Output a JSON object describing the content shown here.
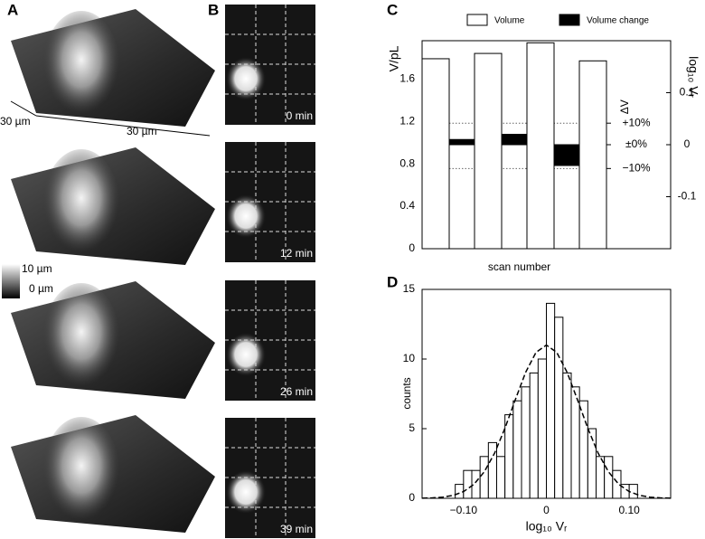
{
  "figure": {
    "panel_labels": [
      "A",
      "B",
      "C",
      "D"
    ],
    "panel_a": {
      "scale_x": "30 µm",
      "scale_y": "30 µm",
      "colorbar_max": "10 µm",
      "colorbar_min": "0 µm"
    },
    "panel_b": {
      "times": [
        "0 min",
        "12 min",
        "26 min",
        "39 min"
      ]
    }
  },
  "chart_data": [
    {
      "type": "bar",
      "categories": [
        null,
        null,
        null,
        null
      ],
      "xlabel": "scan number",
      "ylabel": "V/pL",
      "y2label": "log₁₀ Vᵣ",
      "ylim": [
        0,
        1.96
      ],
      "yticks": [
        0,
        0.4,
        0.8,
        1.2,
        1.6
      ],
      "y2lim": [
        -0.2,
        0.2
      ],
      "y2ticks": [
        -0.1,
        0,
        0.1
      ],
      "legend": "top",
      "series": [
        {
          "name": "Volume",
          "color": "#ffffff",
          "values": [
            1.79,
            1.84,
            1.94,
            1.77
          ]
        },
        {
          "name": "Volume change",
          "color": "#000000",
          "axis": "y2",
          "values": [
            null,
            0.01,
            0.02,
            -0.04
          ]
        }
      ],
      "dv_label": "ΔV",
      "dv_ticks": [
        {
          "value": 0.0414,
          "label": "+10%"
        },
        {
          "value": 0,
          "label": "±0%"
        },
        {
          "value": -0.0458,
          "label": "−10%"
        }
      ]
    },
    {
      "type": "histogram",
      "xlabel": "log₁₀ Vᵣ",
      "ylabel": "counts",
      "color": "#ffffff",
      "bins": [
        -0.11,
        -0.1,
        -0.09,
        -0.08,
        -0.07,
        -0.06,
        -0.05,
        -0.04,
        -0.03,
        -0.02,
        -0.01,
        0,
        0.01,
        0.02,
        0.03,
        0.04,
        0.05,
        0.06,
        0.07,
        0.08,
        0.09,
        0.1,
        0.11
      ],
      "values": [
        1,
        2,
        2,
        3,
        4,
        3,
        6,
        7,
        8,
        9,
        10,
        14,
        13,
        9,
        8,
        7,
        5,
        3,
        3,
        2,
        1,
        1
      ],
      "xlim": [
        -0.15,
        0.15
      ],
      "xticks": [
        {
          "value": -0.1,
          "label": "−0.10"
        },
        0,
        {
          "value": 0.1,
          "label": "0.10"
        }
      ],
      "ylim": [
        0,
        15
      ],
      "yticks": [
        0,
        5,
        10,
        15
      ],
      "fit_curve": {
        "x": [
          -0.15,
          -0.1375,
          -0.125,
          -0.1125,
          -0.1,
          -0.0875,
          -0.075,
          -0.0625,
          -0.05,
          -0.0375,
          -0.025,
          -0.0125,
          0,
          0.0125,
          0.025,
          0.0375,
          0.05,
          0.0625,
          0.075,
          0.0875,
          0.1,
          0.1125,
          0.125,
          0.1375,
          0.15
        ],
        "y": [
          0.01,
          0.03,
          0.083,
          0.21,
          0.48,
          1.0,
          1.9,
          3.24,
          5.03,
          7.08,
          9.05,
          10.48,
          11,
          10.48,
          9.05,
          7.08,
          5.03,
          3.24,
          1.9,
          1.0,
          0.48,
          0.21,
          0.083,
          0.03,
          0.01
        ]
      }
    }
  ]
}
